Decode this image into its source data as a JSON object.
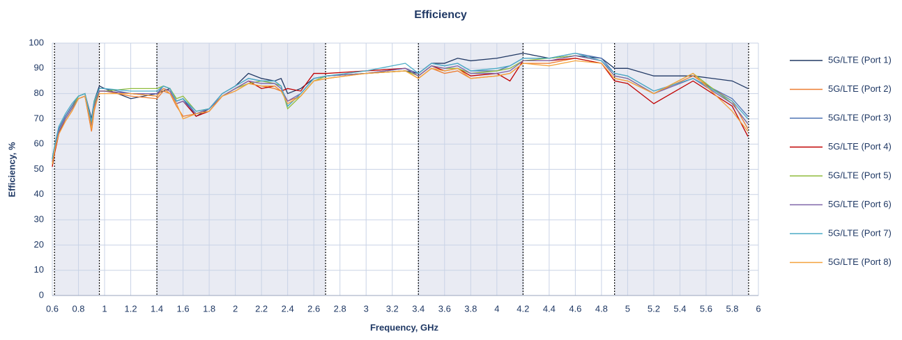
{
  "chart_data": {
    "type": "line",
    "title": "Efficiency",
    "x_label": "Frequency, GHz",
    "y_label": "Efficiency, %",
    "x": [
      0.6,
      0.62,
      0.65,
      0.7,
      0.75,
      0.8,
      0.85,
      0.9,
      0.92,
      0.96,
      1.0,
      1.2,
      1.4,
      1.45,
      1.5,
      1.55,
      1.6,
      1.7,
      1.8,
      1.9,
      2.0,
      2.1,
      2.2,
      2.3,
      2.35,
      2.4,
      2.5,
      2.6,
      2.7,
      3.0,
      3.3,
      3.4,
      3.5,
      3.6,
      3.7,
      3.8,
      4.0,
      4.1,
      4.2,
      4.4,
      4.6,
      4.8,
      4.9,
      5.0,
      5.2,
      5.5,
      5.8,
      5.92
    ],
    "series": [
      {
        "name": "5G/LTE (Port 1)",
        "color": "#203864",
        "values": [
          54,
          60,
          66,
          71,
          75,
          79,
          80,
          70,
          77,
          83,
          82,
          78,
          80,
          81,
          82,
          77,
          78,
          71,
          74,
          80,
          83,
          88,
          86,
          85,
          86,
          80,
          82,
          86,
          87,
          88,
          89,
          88,
          92,
          92,
          94,
          93,
          94,
          95,
          96,
          94,
          95,
          94,
          90,
          90,
          87,
          87,
          85,
          82
        ]
      },
      {
        "name": "5G/LTE (Port 2)",
        "color": "#ed7d31",
        "values": [
          52,
          57,
          64,
          69,
          73,
          78,
          79,
          65,
          73,
          81,
          81,
          79,
          78,
          81,
          80,
          75,
          71,
          72,
          73,
          79,
          81,
          84,
          83,
          82,
          81,
          77,
          79,
          85,
          86,
          88,
          89,
          86,
          90,
          88,
          89,
          86,
          87,
          88,
          92,
          92,
          94,
          92,
          86,
          85,
          80,
          87,
          77,
          66
        ]
      },
      {
        "name": "5G/LTE (Port 3)",
        "color": "#4f74b4",
        "values": [
          53,
          59,
          66,
          71,
          75,
          79,
          80,
          68,
          76,
          82,
          82,
          80,
          80,
          83,
          82,
          77,
          78,
          72,
          74,
          80,
          83,
          86,
          85,
          85,
          83,
          75,
          80,
          86,
          87,
          88,
          90,
          88,
          92,
          91,
          92,
          89,
          89,
          91,
          94,
          94,
          96,
          94,
          88,
          87,
          81,
          86,
          78,
          71
        ]
      },
      {
        "name": "5G/LTE (Port 4)",
        "color": "#c00000",
        "values": [
          51,
          57,
          64,
          70,
          74,
          78,
          79,
          66,
          74,
          81,
          81,
          80,
          79,
          82,
          81,
          76,
          77,
          71,
          73,
          79,
          82,
          85,
          82,
          83,
          81,
          82,
          81,
          88,
          88,
          89,
          90,
          87,
          91,
          89,
          90,
          87,
          88,
          85,
          93,
          93,
          94,
          92,
          85,
          84,
          76,
          85,
          75,
          63
        ]
      },
      {
        "name": "5G/LTE (Port 5)",
        "color": "#8fbc3b",
        "values": [
          52,
          58,
          65,
          70,
          74,
          79,
          80,
          68,
          76,
          81,
          81,
          82,
          82,
          83,
          82,
          78,
          79,
          73,
          74,
          79,
          82,
          84,
          85,
          84,
          83,
          74,
          79,
          85,
          87,
          88,
          89,
          87,
          91,
          90,
          90,
          88,
          89,
          90,
          93,
          94,
          95,
          93,
          87,
          86,
          80,
          88,
          76,
          68
        ]
      },
      {
        "name": "5G/LTE (Port 6)",
        "color": "#7f64a8",
        "values": [
          53,
          58,
          65,
          70,
          74,
          78,
          79,
          67,
          75,
          81,
          81,
          80,
          80,
          82,
          81,
          76,
          77,
          72,
          74,
          79,
          82,
          85,
          84,
          84,
          82,
          77,
          80,
          86,
          87,
          88,
          90,
          87,
          91,
          90,
          91,
          88,
          88,
          89,
          93,
          93,
          95,
          93,
          87,
          86,
          80,
          86,
          76,
          68
        ]
      },
      {
        "name": "5G/LTE (Port 7)",
        "color": "#4bacc6",
        "values": [
          54,
          60,
          67,
          72,
          76,
          79,
          80,
          69,
          77,
          82,
          82,
          81,
          81,
          83,
          82,
          77,
          78,
          73,
          74,
          80,
          83,
          86,
          85,
          85,
          83,
          75,
          80,
          86,
          87,
          89,
          92,
          88,
          92,
          91,
          92,
          89,
          90,
          91,
          94,
          94,
          96,
          93,
          88,
          87,
          81,
          86,
          77,
          70
        ]
      },
      {
        "name": "5G/LTE (Port 8)",
        "color": "#f4a23b",
        "values": [
          52,
          58,
          64,
          69,
          73,
          78,
          79,
          66,
          74,
          80,
          80,
          80,
          79,
          82,
          80,
          76,
          70,
          72,
          73,
          79,
          81,
          84,
          83,
          83,
          81,
          76,
          79,
          85,
          86,
          88,
          89,
          86,
          90,
          89,
          90,
          86,
          87,
          88,
          92,
          91,
          93,
          92,
          86,
          85,
          80,
          88,
          73,
          65
        ]
      }
    ],
    "bands": [
      [
        0.617,
        0.96
      ],
      [
        1.4,
        2.69
      ],
      [
        3.4,
        4.2
      ],
      [
        4.9,
        5.925
      ]
    ],
    "xlim": [
      0.6,
      6
    ],
    "ylim": [
      0,
      100
    ],
    "xticks": [
      0.6,
      0.8,
      1,
      1.2,
      1.4,
      1.6,
      1.8,
      2,
      2.2,
      2.4,
      2.6,
      2.8,
      3,
      3.2,
      3.4,
      3.6,
      3.8,
      4,
      4.2,
      4.4,
      4.6,
      4.8,
      5,
      5.2,
      5.4,
      5.6,
      5.8,
      6
    ],
    "yticks": [
      0,
      10,
      20,
      30,
      40,
      50,
      60,
      70,
      80,
      90,
      100
    ],
    "grid": true,
    "legend": "right"
  }
}
